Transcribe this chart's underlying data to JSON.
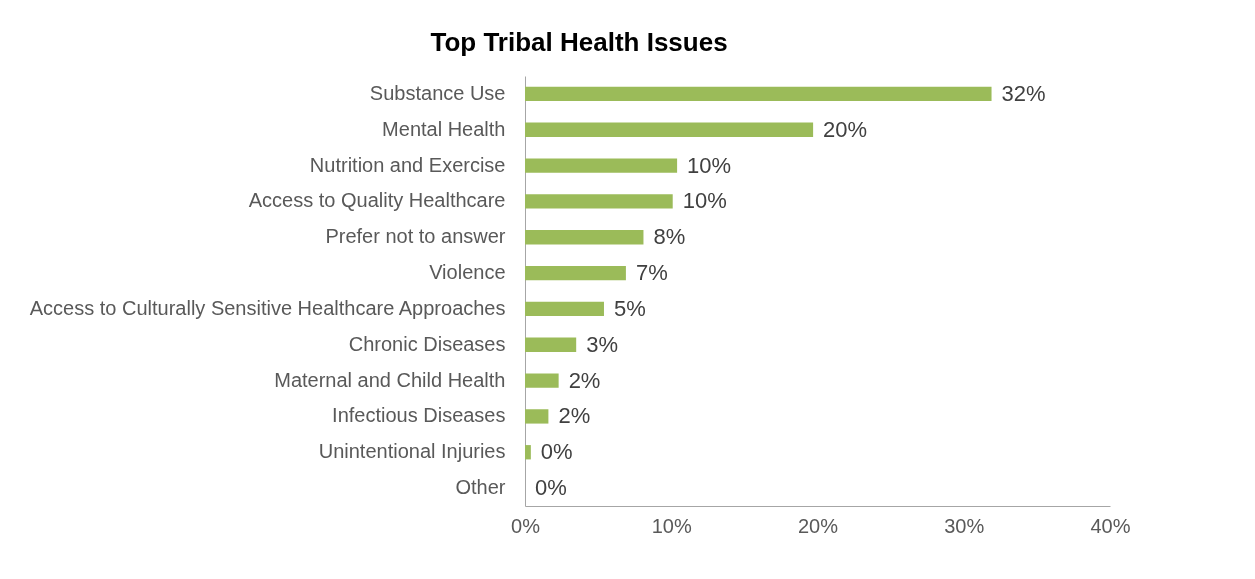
{
  "chart_data": {
    "type": "bar",
    "orientation": "horizontal",
    "title": "Top Tribal Health Issues",
    "categories": [
      "Substance Use",
      "Mental Health",
      "Nutrition and Exercise",
      "Access to Quality Healthcare",
      "Prefer not to answer",
      "Violence",
      "Access to Culturally Sensitive Healthcare Approaches",
      "Chronic Diseases",
      "Maternal and Child Health",
      "Infectious Diseases",
      "Unintentional Injuries",
      "Other"
    ],
    "values": [
      31.9,
      19.7,
      10.4,
      10.1,
      8.1,
      6.9,
      5.4,
      3.5,
      2.3,
      1.6,
      0.4,
      0
    ],
    "value_labels": [
      "32%",
      "20%",
      "10%",
      "10%",
      "8%",
      "7%",
      "5%",
      "3%",
      "2%",
      "2%",
      "0%",
      "0%"
    ],
    "color": "#9bbb59",
    "xlim": [
      0,
      40
    ],
    "xticks": [
      {
        "value": 0,
        "label": "0%"
      },
      {
        "value": 10,
        "label": "10%"
      },
      {
        "value": 20,
        "label": "20%"
      },
      {
        "value": 30,
        "label": "30%"
      },
      {
        "value": 40,
        "label": "40%"
      }
    ],
    "grid": false
  }
}
